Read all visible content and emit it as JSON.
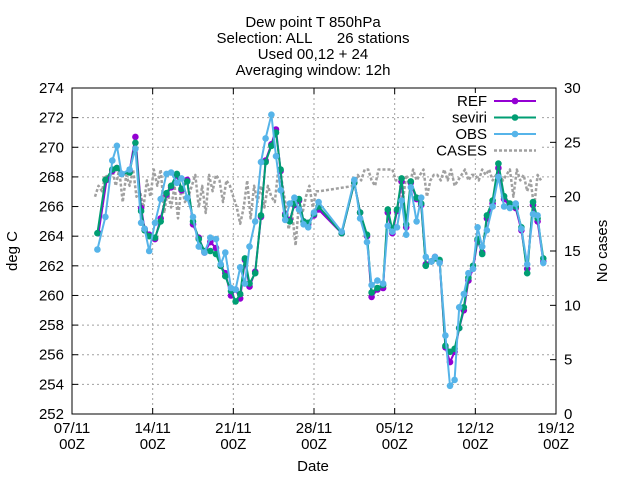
{
  "chart_data": {
    "type": "line",
    "title_lines": [
      "Dew point T 850hPa",
      "Selection: ALL      26 stations",
      "Used 00,12 + 24",
      "Averaging window: 12h"
    ],
    "xlabel": "Date",
    "ylabel": "deg C",
    "y2label": "No cases",
    "ylim": [
      252,
      274
    ],
    "y2lim": [
      0,
      30
    ],
    "xlim": [
      0,
      42
    ],
    "y_ticks": [
      252,
      254,
      256,
      258,
      260,
      262,
      264,
      266,
      268,
      270,
      272,
      274
    ],
    "y2_ticks": [
      0,
      5,
      10,
      15,
      20,
      25,
      30
    ],
    "x_ticks": [
      {
        "x": 0,
        "label1": "07/11",
        "label2": "00Z"
      },
      {
        "x": 7,
        "label1": "14/11",
        "label2": "00Z"
      },
      {
        "x": 14,
        "label1": "21/11",
        "label2": "00Z"
      },
      {
        "x": 21,
        "label1": "28/11",
        "label2": "00Z"
      },
      {
        "x": 28,
        "label1": "05/12",
        "label2": "00Z"
      },
      {
        "x": 35,
        "label1": "12/12",
        "label2": "00Z"
      },
      {
        "x": 42,
        "label1": "19/12",
        "label2": "00Z"
      }
    ],
    "grid": true,
    "legend_position": "top-right",
    "series": [
      {
        "name": "REF",
        "color": "#9400d3",
        "marker": "circle",
        "axis": "y",
        "x": [
          2.3,
          3.0,
          3.5,
          3.9,
          4.3,
          5.0,
          5.5,
          6.0,
          6.3,
          6.7,
          7.2,
          7.7,
          8.2,
          8.6,
          9.1,
          9.5,
          10.0,
          10.5,
          11.0,
          11.5,
          12.0,
          12.5,
          12.9,
          13.3,
          13.8,
          14.2,
          14.6,
          15.0,
          15.4,
          15.9,
          16.4,
          16.8,
          17.3,
          17.7,
          18.1,
          18.5,
          18.9,
          19.3,
          19.7,
          20.1,
          20.5,
          21.0,
          21.4,
          23.4,
          24.5,
          25.0,
          25.6,
          26.0,
          26.5,
          27.0,
          27.4,
          27.8,
          28.2,
          28.6,
          29.0,
          29.4,
          29.9,
          30.3,
          30.7,
          31.2,
          31.5,
          31.9,
          32.4,
          32.8,
          33.2,
          33.6,
          34.0,
          34.4,
          34.8,
          35.2,
          35.6,
          36.0,
          36.5,
          37.0,
          37.5,
          38.0,
          38.5,
          39.0,
          39.5,
          40.0,
          40.4,
          40.9
        ],
        "y": [
          264.2,
          267.8,
          268.4,
          268.6,
          268.2,
          268.4,
          270.7,
          265.9,
          264.5,
          264.1,
          263.8,
          265.2,
          266.8,
          267.3,
          268.1,
          267.1,
          267.8,
          264.8,
          263.9,
          262.9,
          263.6,
          263.2,
          262.0,
          261.5,
          260.0,
          260.4,
          259.8,
          262.4,
          260.6,
          261.6,
          265.3,
          269.1,
          270.2,
          271.2,
          268.4,
          265.5,
          265.1,
          266.1,
          266.4,
          265.0,
          264.8,
          265.4,
          265.8,
          264.2,
          267.6,
          265.6,
          264.0,
          259.9,
          260.4,
          260.5,
          265.6,
          264.2,
          265.7,
          267.7,
          264.6,
          267.6,
          266.5,
          266.1,
          262.1,
          262.3,
          262.6,
          262.3,
          256.5,
          255.5,
          256.2,
          257.8,
          259.0,
          261.0,
          261.8,
          263.7,
          262.9,
          265.2,
          266.2,
          268.6,
          266.5,
          266.0,
          265.9,
          264.4,
          261.8,
          266.1,
          265.0,
          262.3
        ]
      },
      {
        "name": "seviri",
        "color": "#009e73",
        "marker": "circle",
        "axis": "y",
        "x": [
          2.2,
          2.9,
          3.5,
          3.9,
          4.3,
          5.0,
          5.5,
          6.0,
          6.3,
          6.7,
          7.2,
          7.7,
          8.2,
          8.6,
          9.1,
          9.5,
          10.0,
          10.5,
          11.0,
          11.5,
          12.0,
          12.5,
          12.9,
          13.3,
          13.8,
          14.2,
          14.6,
          15.0,
          15.4,
          15.9,
          16.4,
          16.8,
          17.3,
          17.7,
          18.1,
          18.5,
          18.9,
          19.3,
          19.7,
          20.1,
          20.5,
          21.0,
          21.4,
          23.4,
          24.5,
          25.0,
          25.6,
          26.0,
          26.5,
          27.0,
          27.4,
          27.8,
          28.2,
          28.6,
          29.0,
          29.4,
          29.9,
          30.3,
          30.7,
          31.2,
          31.5,
          31.9,
          32.4,
          32.8,
          33.2,
          33.6,
          34.0,
          34.4,
          34.8,
          35.2,
          35.6,
          36.0,
          36.5,
          37.0,
          37.5,
          38.0,
          38.5,
          39.0,
          39.5,
          40.0,
          40.4,
          40.9
        ],
        "y": [
          264.2,
          267.8,
          268.5,
          268.6,
          268.2,
          268.3,
          270.3,
          265.7,
          264.4,
          264.0,
          263.9,
          265.0,
          266.9,
          267.4,
          268.2,
          267.2,
          267.7,
          265.0,
          263.8,
          263.0,
          263.0,
          262.8,
          262.0,
          261.3,
          260.3,
          259.6,
          260.1,
          262.5,
          260.8,
          261.5,
          265.4,
          269.0,
          270.1,
          271.0,
          268.5,
          265.4,
          265.0,
          266.2,
          266.5,
          265.0,
          264.9,
          265.5,
          266.0,
          264.2,
          267.6,
          265.6,
          264.1,
          260.2,
          260.5,
          260.7,
          265.8,
          264.4,
          265.8,
          267.9,
          264.8,
          267.7,
          266.6,
          266.2,
          262.0,
          262.3,
          262.5,
          262.4,
          256.6,
          256.2,
          256.4,
          257.8,
          259.2,
          261.2,
          262.0,
          263.8,
          262.8,
          265.4,
          266.4,
          268.9,
          266.7,
          266.2,
          266.0,
          264.6,
          261.5,
          266.3,
          265.2,
          262.5
        ]
      },
      {
        "name": "OBS",
        "color": "#56b4e9",
        "marker": "circle",
        "axis": "y",
        "x": [
          2.2,
          2.9,
          3.5,
          3.9,
          4.3,
          5.0,
          5.5,
          6.0,
          6.3,
          6.7,
          7.2,
          7.7,
          8.2,
          8.6,
          9.1,
          9.5,
          10.0,
          10.5,
          11.0,
          11.5,
          12.0,
          12.5,
          12.9,
          13.3,
          13.8,
          14.2,
          14.6,
          15.0,
          15.4,
          15.9,
          16.4,
          16.8,
          17.3,
          17.7,
          18.1,
          18.5,
          18.9,
          19.3,
          19.7,
          20.1,
          20.5,
          21.0,
          21.4,
          23.4,
          24.5,
          25.0,
          25.6,
          26.0,
          26.5,
          27.0,
          27.4,
          27.8,
          28.2,
          28.6,
          29.0,
          29.4,
          29.9,
          30.3,
          30.7,
          31.2,
          31.5,
          31.9,
          32.4,
          32.8,
          33.2,
          33.6,
          34.0,
          34.4,
          34.8,
          35.2,
          35.6,
          36.0,
          36.5,
          37.0,
          37.5,
          38.0,
          38.5,
          39.0,
          39.5,
          40.0,
          40.4,
          40.9
        ],
        "y": [
          263.1,
          265.3,
          269.1,
          270.1,
          268.2,
          268.5,
          269.9,
          264.9,
          264.5,
          263.0,
          264.9,
          266.5,
          268.2,
          268.3,
          267.6,
          267.9,
          266.6,
          265.3,
          263.3,
          262.9,
          263.9,
          263.8,
          262.1,
          262.9,
          260.5,
          260.4,
          261.9,
          260.8,
          263.3,
          265.0,
          269.0,
          270.6,
          272.2,
          269.4,
          267.1,
          265.1,
          266.2,
          266.6,
          265.8,
          264.8,
          264.6,
          265.6,
          266.3,
          264.3,
          267.8,
          265.2,
          263.6,
          260.7,
          261.0,
          260.8,
          264.7,
          264.3,
          264.6,
          266.4,
          264.1,
          267.3,
          265.0,
          266.6,
          262.6,
          262.3,
          262.6,
          262.2,
          257.3,
          253.9,
          254.3,
          259.2,
          260.1,
          261.5,
          261.8,
          264.6,
          263.3,
          264.4,
          266.0,
          268.0,
          266.0,
          265.9,
          266.2,
          264.5,
          262.1,
          265.5,
          265.4,
          262.2
        ]
      },
      {
        "name": "CASES",
        "color": "#a0a0a0",
        "marker": "none",
        "dash": "3 2",
        "axis": "y2",
        "x": [
          2.0,
          2.3,
          2.6,
          2.9,
          3.2,
          3.5,
          3.8,
          4.1,
          4.4,
          4.7,
          5.0,
          5.3,
          5.6,
          5.9,
          6.2,
          6.5,
          6.8,
          7.1,
          7.4,
          7.7,
          8.0,
          8.3,
          8.6,
          8.9,
          9.2,
          9.5,
          9.8,
          10.1,
          10.4,
          10.7,
          11.0,
          11.3,
          11.6,
          11.9,
          12.2,
          12.5,
          12.8,
          13.1,
          13.4,
          13.7,
          14.0,
          14.3,
          14.6,
          14.9,
          15.2,
          15.5,
          15.8,
          16.1,
          16.4,
          16.7,
          17.0,
          17.3,
          17.6,
          17.9,
          18.2,
          18.5,
          18.8,
          19.1,
          19.4,
          19.7,
          20.0,
          20.3,
          20.6,
          20.9,
          21.2,
          21.5,
          24.5,
          24.8,
          25.1,
          25.4,
          25.7,
          26.0,
          26.3,
          26.6,
          26.9,
          27.2,
          27.5,
          27.8,
          28.1,
          28.4,
          28.7,
          29.0,
          29.3,
          29.6,
          29.9,
          30.2,
          30.5,
          30.8,
          31.1,
          31.4,
          31.7,
          32.0,
          32.3,
          32.6,
          32.9,
          33.2,
          33.5,
          33.8,
          34.1,
          34.4,
          34.7,
          35.0,
          35.3,
          35.6,
          35.9,
          36.2,
          36.5,
          36.8,
          37.1,
          37.4,
          37.7,
          38.0,
          38.3,
          38.6,
          38.9,
          39.2,
          39.5,
          39.8,
          40.1,
          40.4,
          40.7
        ],
        "y": [
          20.0,
          21.0,
          20.5,
          22.0,
          21.5,
          22.5,
          21.0,
          22.5,
          19.5,
          22.0,
          21.0,
          22.5,
          20.0,
          20.5,
          19.0,
          21.5,
          20.0,
          22.5,
          21.0,
          22.5,
          18.5,
          20.5,
          19.0,
          21.0,
          18.0,
          21.0,
          19.5,
          20.0,
          21.0,
          22.0,
          19.0,
          21.0,
          18.5,
          22.0,
          20.5,
          22.0,
          21.5,
          19.5,
          21.5,
          21.0,
          20.0,
          19.0,
          17.5,
          19.0,
          21.5,
          18.0,
          21.0,
          19.5,
          21.0,
          19.0,
          21.0,
          20.0,
          19.5,
          22.5,
          21.5,
          19.5,
          17.0,
          18.5,
          15.5,
          19.5,
          18.5,
          20.0,
          21.0,
          19.0,
          20.5,
          20.5,
          21.0,
          22.0,
          21.5,
          22.5,
          22.5,
          21.5,
          21.0,
          22.5,
          22.5,
          22.5,
          22.5,
          22.5,
          21.5,
          21.5,
          19.5,
          22.0,
          21.0,
          22.5,
          21.5,
          22.0,
          22.5,
          20.0,
          21.5,
          22.0,
          22.0,
          21.5,
          22.5,
          21.5,
          22.5,
          21.0,
          21.5,
          22.0,
          22.5,
          21.5,
          22.0,
          22.0,
          21.5,
          22.5,
          22.0,
          22.5,
          21.5,
          22.0,
          22.0,
          21.5,
          22.0,
          22.5,
          20.0,
          22.5,
          21.5,
          22.0,
          20.5,
          21.5,
          19.0,
          22.0,
          21.5
        ]
      }
    ]
  }
}
